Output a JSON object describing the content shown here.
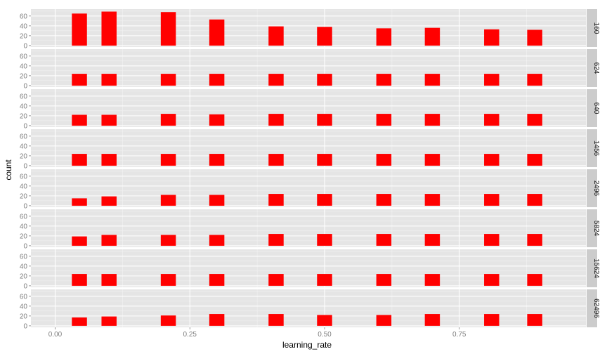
{
  "chart_data": {
    "type": "bar",
    "xlabel": "learning_rate",
    "ylabel": "count",
    "xlim": [
      -0.045,
      0.985
    ],
    "ylim": [
      -3,
      74
    ],
    "x_ticks": [
      0.0,
      0.25,
      0.5,
      0.75
    ],
    "x_tick_labels": [
      "0.00",
      "0.25",
      "0.50",
      "0.75"
    ],
    "y_ticks": [
      0,
      20,
      40,
      60
    ],
    "y_tick_labels": [
      "0",
      "20",
      "40",
      "60"
    ],
    "bar_width": 0.028,
    "categories": [
      0.045,
      0.1,
      0.21,
      0.3,
      0.41,
      0.5,
      0.61,
      0.7,
      0.81,
      0.89
    ],
    "grid": true,
    "colors": {
      "bar": "#ff0000",
      "panel_bg": "#e5e5e5",
      "grid_major": "#ffffff",
      "grid_minor": "#f2f2f2",
      "strip_bg": "#cccccc"
    },
    "facets": [
      {
        "label": "160",
        "values": [
          65,
          69,
          68,
          53,
          39,
          38,
          35,
          36,
          33,
          32
        ]
      },
      {
        "label": "624",
        "values": [
          24,
          24,
          24,
          24,
          24,
          24,
          24,
          24,
          24,
          24
        ]
      },
      {
        "label": "640",
        "values": [
          22,
          22,
          24,
          23,
          24,
          24,
          24,
          24,
          24,
          24
        ]
      },
      {
        "label": "1456",
        "values": [
          24,
          24,
          24,
          24,
          24,
          24,
          24,
          24,
          24,
          24
        ]
      },
      {
        "label": "2496",
        "values": [
          15,
          19,
          22,
          22,
          24,
          24,
          24,
          24,
          24,
          24
        ]
      },
      {
        "label": "5824",
        "values": [
          19,
          22,
          22,
          22,
          24,
          24,
          24,
          24,
          24,
          24
        ]
      },
      {
        "label": "15624",
        "values": [
          24,
          24,
          24,
          24,
          24,
          24,
          24,
          24,
          24,
          24
        ]
      },
      {
        "label": "62496",
        "values": [
          17,
          19,
          21,
          24,
          24,
          22,
          22,
          24,
          24,
          24
        ]
      }
    ]
  }
}
